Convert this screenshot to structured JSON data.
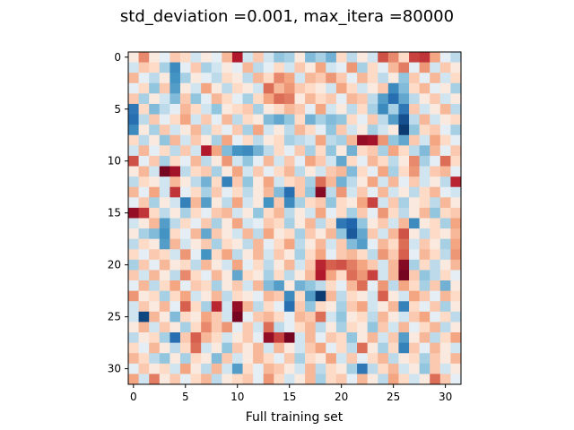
{
  "chart_data": {
    "type": "heatmap",
    "title": "std_deviation =0.001, max_itera =80000",
    "xlabel": "Full training set",
    "ylabel": "",
    "rows": 32,
    "cols": 32,
    "xlim": [
      -0.5,
      31.5
    ],
    "ylim": [
      31.5,
      -0.5
    ],
    "x_ticks": [
      0,
      5,
      10,
      15,
      20,
      25,
      30
    ],
    "y_ticks": [
      0,
      5,
      10,
      15,
      20,
      25,
      30
    ],
    "colormap": "RdBu_r",
    "value_range": [
      -1,
      1
    ],
    "grid": false,
    "legend": "none",
    "cells": {
      "rows_text": [
        "+0.05 +0.35 +0.05 -0.05 +0.15 +0.10 -0.10 +0.05 -0.05 +0.20 +0.75 -0.10 +0.15 -0.10 -0.25 -0.20 +0.05 -0.30 -0.20 -0.35 +0.10 -0.15 +0.05 -0.10 +0.55 +0.35 +0.10 +0.60 +0.65 +0.25 -0.05 -0.15",
        "-0.10 +0.15 +0.10 -0.20 -0.55 -0.05 +0.15 -0.20 -0.10 +0.05 -0.05 +0.20 -0.15 -0.05 +0.10 -0.10 +0.15 +0.05 +0.25 -0.10 -0.05 +0.30 -0.20 +0.10 -0.05 +0.20 +0.40 -0.05 +0.30 -0.10 +0.15 +0.05",
        "+0.20 -0.05 -0.15 +0.05 -0.50 -0.20 +0.05 -0.05 -0.15 +0.10 +0.05 -0.15 +0.20 +0.10 +0.35 +0.25 -0.10 +0.20 +0.15 +0.30 +0.15 -0.05 +0.20 +0.10 -0.15 +0.05 -0.25 +0.15 -0.05 +0.20 -0.10 +0.10",
        "-0.05 +0.10 -0.25 +0.15 -0.45 +0.05 -0.10 +0.25 +0.05 -0.15 +0.10 +0.05 -0.10 +0.45 +0.20 +0.30 +0.15 +0.10 +0.05 -0.10 +0.25 +0.10 -0.10 +0.05 +0.15 -0.55 -0.30 +0.10 +0.20 -0.05 +0.05 -0.20",
        "+0.15 -0.20 +0.05 -0.10 -0.30 +0.15 -0.25 -0.05 +0.20 +0.10 -0.05 -0.20 +0.10 +0.25 +0.45 +0.40 +0.05 +0.20 +0.10 +0.15 -0.05 +0.20 +0.15 -0.15 -0.45 -0.70 -0.40 -0.15 +0.05 +0.15 -0.10 +0.05",
        "-0.65 +0.10 -0.30 -0.15 -0.05 +0.20 +0.10 -0.10 -0.25 +0.05 +0.10 +0.15 -0.20 +0.05 +0.10 +0.20 +0.15 -0.05 +0.25 -0.10 +0.05 -0.15 +0.10 -0.20 -0.55 -0.20 -0.65 +0.15 -0.10 +0.05 +0.20 -0.15",
        "-0.70 -0.15 +0.15 -0.05 +0.10 +0.25 -0.10 +0.15 -0.05 +0.20 -0.15 +0.10 +0.05 -0.30 -0.40 -0.25 +0.10 -0.35 -0.20 -0.30 -0.25 +0.10 -0.05 +0.15 -0.15 -0.45 -0.85 -0.15 +0.20 -0.10 +0.05 +0.10",
        "-0.55 +0.05 -0.20 +0.15 -0.10 +0.05 +0.20 -0.15 +0.10 -0.05 +0.15 -0.20 +0.25 -0.10 +0.05 -0.15 +0.20 +0.10 -0.05 -0.25 +0.15 -0.10 +0.05 -0.20 -0.10 +0.05 -0.95 -0.25 +0.10 +0.15 -0.05 -0.20",
        "+0.10 -0.15 +0.05 -0.25 +0.20 -0.10 +0.15 +0.05 -0.20 +0.25 -0.05 +0.10 -0.15 +0.05 +0.10 -0.20 -0.15 -0.10 +0.25 -0.15 -0.20 +0.20 +0.85 +0.80 +0.30 -0.25 -0.40 +0.15 -0.10 +0.25 +0.10 -0.05",
        "-0.10 +0.20 -0.05 +0.10 -0.15 +0.15 -0.10 +0.75 +0.25 -0.30 -0.50 -0.55 -0.35 -0.15 +0.10 -0.05 +0.15 -0.20 +0.10 -0.25 +0.05 -0.35 +0.10 +0.15 -0.20 +0.25 +0.10 -0.15 -0.30 +0.20 -0.05 +0.15",
        "+0.55 -0.05 +0.15 -0.20 +0.10 -0.05 +0.20 -0.15 +0.05 +0.30 -0.10 -0.25 -0.05 +0.20 -0.10 +0.15 -0.05 +0.25 +0.15 -0.10 -0.40 +0.10 -0.05 +0.20 +0.10 -0.15 +0.05 +0.35 -0.20 -0.05 +0.45 +0.10",
        "+0.05 +0.20 -0.10 +0.95 +0.80 -0.15 +0.10 +0.15 -0.20 +0.05 +0.25 -0.10 +0.15 -0.05 +0.10 +0.20 -0.15 +0.05 -0.10 +0.15 +0.20 -0.30 +0.10 -0.05 +0.25 -0.20 +0.10 +0.30 -0.10 +0.15 +0.20 -0.05",
        "-0.15 +0.10 +0.05 -0.10 +0.20 +0.05 -0.15 -0.35 +0.10 -0.60 +0.15 -0.25 +0.05 +0.25 -0.10 +0.10 +0.15 -0.20 +0.45 +0.20 -0.35 -0.15 +0.05 +0.25 -0.10 +0.20 -0.05 +0.15 -0.10 +0.05 -0.15 +0.70",
        "+0.20 -0.05 +0.25 -0.10 +0.65 -0.05 +0.10 -0.20 +0.15 -0.05 +0.10 -0.15 +0.05 +0.20 -0.30 -0.70 +0.15 -0.25 +0.90 -0.15 +0.30 -0.10 +0.15 -0.05 +0.20 -0.10 +0.05 -0.15 +0.10 +0.20 -0.05 -0.10",
        "-0.05 +0.15 -0.20 +0.05 -0.10 -0.60 +0.20 -0.45 +0.05 -0.15 +0.25 -0.10 +0.05 -0.50 +0.15 -0.55 -0.20 +0.10 +0.15 -0.25 +0.10 +0.05 +0.25 +0.60 -0.10 +0.15 -0.20 +0.05 +0.10 -0.15 +0.20 +0.05",
        "+0.85 +0.65 +0.10 -0.15 +0.05 -0.20 +0.10 -0.05 +0.15 +0.20 -0.10 +0.05 -0.25 +0.10 +0.20 -0.15 +0.05 -0.10 +0.25 -0.05 +0.10 -0.20 +0.15 -0.05 +0.30 +0.10 -0.15 +0.05 +0.20 -0.25 +0.10 +0.15",
        "-0.10 +0.05 +0.20 -0.45 -0.15 +0.10 -0.05 +0.15 -0.20 +0.05 +0.25 -0.10 -0.05 +0.15 +0.10 -0.20 +0.05 +0.20 -0.15 +0.10 -0.65 -0.75 -0.25 +0.05 +0.15 -0.10 +0.20 -0.55 +0.05 +0.10 -0.20 +0.25",
        "+0.05 -0.20 -0.30 -0.50 +0.10 -0.05 +0.20 -0.40 +0.15 +0.05 -0.10 +0.20 -0.15 +0.25 +0.05 +0.10 -0.20 +0.15 +0.05 +0.20 -0.25 -0.80 -0.40 +0.15 -0.10 +0.20 +0.55 +0.05 -0.15 +0.10 +0.05 +0.20",
        "-0.15 +0.10 +0.05 -0.45 +0.20 -0.10 +0.05 +0.15 -0.20 +0.10 +0.05 -0.15 +0.20 -0.05 +0.10 +0.25 -0.15 +0.05 +0.20 -0.10 +0.15 -0.30 -0.45 -0.05 +0.20 +0.10 +0.45 -0.10 +0.15 +0.05 -0.20 +0.25",
        "+0.10 -0.05 +0.15 +0.10 -0.10 +0.30 -0.05 -0.50 +0.10 +0.25 -0.15 +0.05 +0.20 -0.10 +0.15 +0.05 -0.20 +0.10 +0.25 -0.05 +0.15 +0.20 +0.10 -0.15 +0.30 +0.15 +0.50 -0.05 +0.20 +0.10 -0.15 +0.30",
        "-0.20 +0.15 -0.05 +0.20 +0.05 +0.10 -0.15 +0.20 +0.05 -0.10 +0.25 -0.05 +0.10 -0.15 +0.05 +0.20 -0.10 +0.15 +0.70 +0.50 +0.55 +0.40 +0.25 +0.15 -0.10 +0.20 +0.90 -0.20 +0.10 -0.15 +0.05 +0.20",
        "+0.15 -0.10 +0.20 +0.05 -0.15 +0.35 +0.10 -0.05 +0.20 +0.05 -0.40 +0.10 +0.05 -0.20 +0.10 -0.15 +0.05 +0.20 +0.75 +0.25 +0.10 +0.45 +0.30 +0.60 -0.10 +0.20 +0.95 +0.15 -0.25 -0.15 +0.10 -0.05",
        "-0.05 +0.20 -0.15 +0.10 +0.25 -0.05 +0.15 +0.10 -0.20 +0.05 +0.15 -0.10 +0.20 -0.30 -0.45 +0.05 -0.35 -0.25 -0.15 +0.10 -0.05 +0.20 +0.45 -0.05 +0.30 -0.15 +0.25 +0.10 -0.20 +0.15 -0.35 +0.05",
        "+0.30 +0.05 +0.10 -0.20 +0.10 +0.25 -0.10 +0.05 +0.20 -0.15 +0.10 +0.05 -0.05 +0.20 +0.15 -0.55 +0.10 -0.45 -0.95 +0.20 -0.15 +0.10 +0.05 -0.10 +0.50 +0.05 -0.10 +0.25 +0.15 -0.05 +0.20 +0.10",
        "-0.10 +0.15 +0.05 +0.20 -0.05 +0.50 +0.10 -0.20 +0.70 -0.10 +0.85 +0.20 -0.15 +0.10 -0.05 -0.70 +0.15 -0.25 +0.10 +0.05 -0.20 +0.15 +0.25 -0.10 +0.05 +0.20 -0.60 +0.10 -0.05 +0.15 -0.20 +0.05",
        "-0.10 -0.90 +0.20 +0.05 -0.30 +0.10 +0.05 +0.25 +0.15 -0.10 +0.95 -0.05 +0.15 +0.20 +0.10 -0.05 +0.20 +0.15 +0.45 -0.10 -0.25 +0.05 +0.10 -0.15 +0.20 +0.05 -0.10 +0.15 +0.25 -0.05 +0.10 -0.15",
        "+0.05 +0.20 -0.10 +0.15 +0.05 -0.20 +0.10 +0.35 +0.15 +0.30 -0.05 +0.15 -0.10 +0.45 -0.15 -0.05 +0.10 +0.20 -0.15 +0.05 -0.20 +0.10 +0.05 -0.25 +0.15 -0.10 +0.20 -0.05 +0.10 +0.20 -0.15 +0.05",
        "-0.15 +0.05 +0.10 -0.20 -0.70 +0.15 +0.50 +0.20 +0.10 -0.10 +0.05 +0.15 -0.05 +0.85 +0.60 +0.95 -0.10 +0.20 -0.05 +0.15 +0.10 -0.25 +0.05 +0.20 -0.10 +0.15 -0.45 +0.05 +0.20 -0.15 +0.10 +0.25",
        "+0.10 -0.05 +0.20 +0.05 -0.15 +0.10 +0.45 -0.10 +0.05 -0.25 +0.15 +0.05 +0.20 -0.10 +0.20 +0.05 -0.10 +0.15 +0.25 -0.05 +0.10 -0.15 +0.45 +0.05 -0.20 +0.10 -0.60 +0.15 -0.05 +0.20 +0.05 -0.10",
        "+0.20 +0.10 -0.15 -0.25 +0.05 -0.20 +0.10 +0.05 -0.30 +0.15 -0.10 +0.05 +0.20 +0.10 -0.05 +0.15 -0.20 +0.10 +0.05 +0.25 -0.10 +0.15 -0.05 +0.10 +0.20 -0.15 +0.05 +0.10 -0.20 +0.15 +0.05 +0.20",
        "-0.05 +0.15 +0.05 +0.10 -0.10 +0.25 +0.05 -0.15 +0.20 -0.10 -0.45 +0.10 -0.05 +0.20 +0.15 +0.05 -0.10 +0.20 -0.15 +0.10 +0.05 -0.20 -0.65 -0.15 +0.10 +0.20 -0.10 +0.05 -0.25 +0.15 -0.10 +0.05",
        "+0.25 -0.10 +0.40 +0.05 +0.15 -0.05 +0.10 +0.20 -0.15 +0.05 +0.10 +0.15 -0.05 +0.30 +0.10 -0.10 +0.05 +0.20 -0.20 +0.10 +0.15 -0.05 +0.20 +0.05 -0.15 +0.25 +0.10 -0.10 +0.05 +0.45 +0.15 -0.05"
      ]
    }
  }
}
